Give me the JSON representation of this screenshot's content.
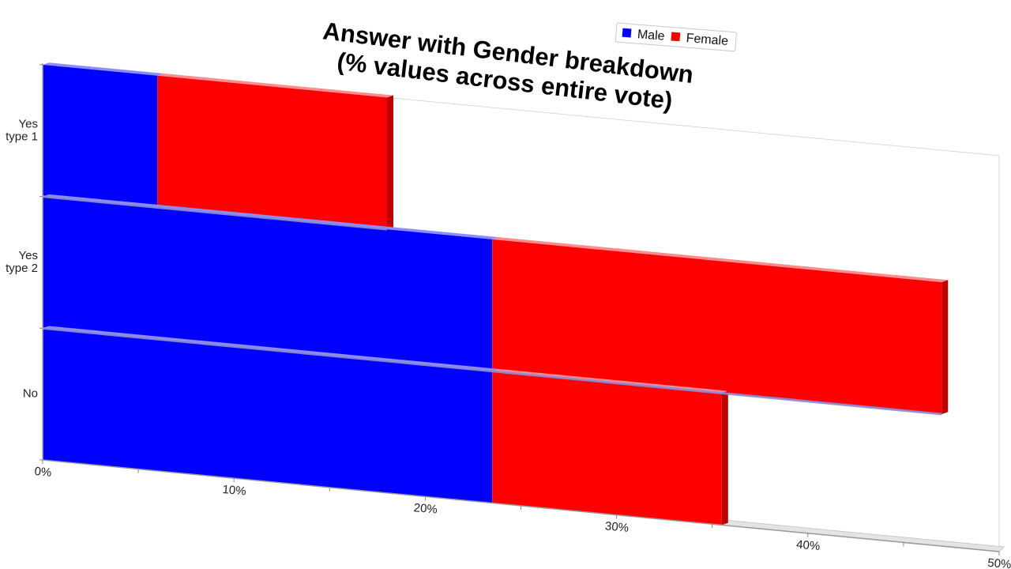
{
  "chart_data": {
    "type": "bar",
    "orientation": "horizontal",
    "stacked": true,
    "title": "Answer with Gender breakdown",
    "subtitle": "(% values across entire vote)",
    "categories": [
      "Yes\ntype 1",
      "Yes\ntype 2",
      "No"
    ],
    "series": [
      {
        "name": "Male",
        "color": "#0000ff",
        "values": [
          6,
          23.5,
          23.5
        ]
      },
      {
        "name": "Female",
        "color": "#ff0000",
        "values": [
          12,
          23.5,
          12
        ]
      }
    ],
    "xlim": [
      0,
      50
    ],
    "x_ticks": [
      "0%",
      "10%",
      "20%",
      "30%",
      "40%",
      "50%"
    ],
    "legend_position": "top-right",
    "grid": false
  }
}
